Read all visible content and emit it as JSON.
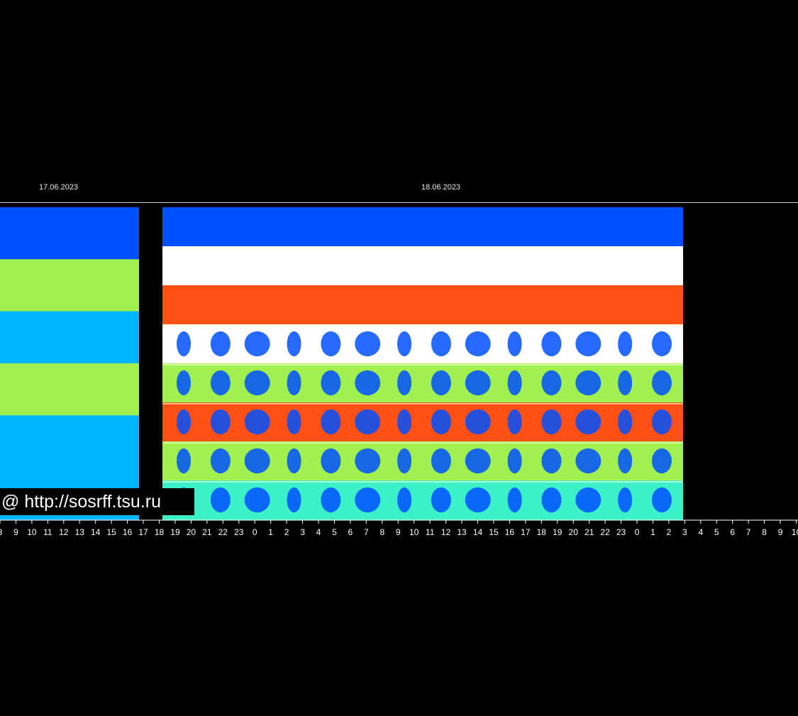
{
  "chart_data": {
    "type": "heatmap",
    "title": "",
    "xlabel": "",
    "ylabel": "",
    "dates": [
      "17.06.2023",
      "18.06.2023"
    ],
    "x_ticks": [
      "8",
      "9",
      "10",
      "11",
      "12",
      "13",
      "14",
      "15",
      "16",
      "17",
      "18",
      "19",
      "20",
      "21",
      "22",
      "23",
      "0",
      "1",
      "2",
      "3",
      "4",
      "5",
      "6",
      "7",
      "8",
      "9",
      "10",
      "11",
      "12",
      "13",
      "14",
      "15",
      "16",
      "17",
      "18",
      "19",
      "20",
      "21",
      "22",
      "23",
      "0",
      "1",
      "2",
      "3",
      "4",
      "5",
      "6",
      "7",
      "8",
      "9",
      "10"
    ],
    "colormap": [
      "#0010c8",
      "#0050ff",
      "#00b4ff",
      "#3cf0c8",
      "#a0f050",
      "#ffe628",
      "#ff5014",
      "#ffffff"
    ],
    "panels": [
      {
        "name": "segment-1",
        "x_range_hours": [
          "8",
          "16"
        ],
        "bands": [
          {
            "intensity": 0.15
          },
          {
            "intensity": 0.62
          },
          {
            "intensity": 0.3
          },
          {
            "intensity": 0.58
          },
          {
            "intensity": 0.35
          },
          {
            "intensity": 0.25
          }
        ]
      },
      {
        "name": "segment-2",
        "x_range_hours": [
          "18",
          "2"
        ],
        "bands": [
          {
            "intensity": 0.2
          },
          {
            "intensity": 1.0
          },
          {
            "intensity": 0.85
          },
          {
            "intensity": 0.98
          },
          {
            "intensity": 0.55
          },
          {
            "intensity": 0.9
          },
          {
            "intensity": 0.5
          },
          {
            "intensity": 0.45
          }
        ]
      }
    ],
    "watermark": "@ http://sosrff.tsu.ru"
  },
  "colors": {
    "background": "#000000",
    "axis": "#ffffff"
  }
}
